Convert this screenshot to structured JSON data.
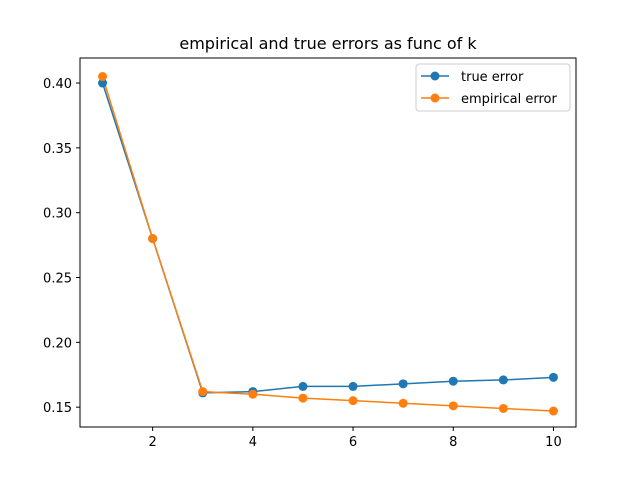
{
  "chart_data": {
    "type": "line",
    "title": "empirical and true errors as func of k",
    "xlabel": "",
    "ylabel": "",
    "x": [
      1,
      2,
      3,
      4,
      5,
      6,
      7,
      8,
      9,
      10
    ],
    "xlim": [
      0.55,
      10.45
    ],
    "ylim": [
      0.1347,
      0.4193
    ],
    "xticks": [
      2,
      4,
      6,
      8,
      10
    ],
    "yticks": [
      0.15,
      0.2,
      0.25,
      0.3,
      0.35,
      0.4
    ],
    "xtick_labels": [
      "2",
      "4",
      "6",
      "8",
      "10"
    ],
    "ytick_labels": [
      "0.15",
      "0.20",
      "0.25",
      "0.30",
      "0.35",
      "0.40"
    ],
    "grid": false,
    "legend_position": "top-right",
    "series": [
      {
        "name": "true error",
        "color": "#1f77b4",
        "values": [
          0.4,
          0.28,
          0.161,
          0.162,
          0.166,
          0.166,
          0.168,
          0.17,
          0.171,
          0.173
        ]
      },
      {
        "name": "empirical error",
        "color": "#ff7f0e",
        "values": [
          0.405,
          0.28,
          0.162,
          0.16,
          0.157,
          0.155,
          0.153,
          0.151,
          0.149,
          0.147
        ]
      }
    ]
  }
}
